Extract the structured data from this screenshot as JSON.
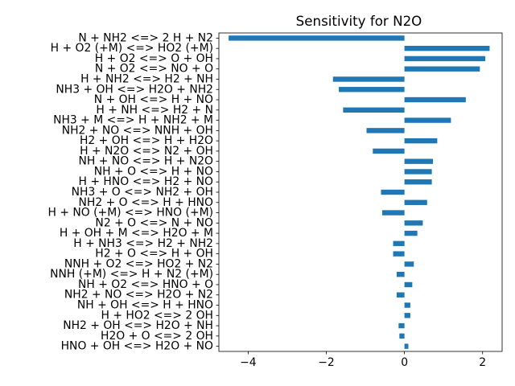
{
  "chart_data": {
    "type": "bar",
    "orientation": "horizontal",
    "title": "Sensitivity for N2O",
    "xlabel": "",
    "ylabel": "",
    "xlim": [
      -4.75,
      2.5
    ],
    "xticks": [
      -4,
      -2,
      0,
      2
    ],
    "xtick_labels": [
      "−4",
      "−2",
      "0",
      "2"
    ],
    "bar_color": "#1f77b4",
    "grid": false,
    "categories": [
      "N + NH2 <=> 2 H + N2",
      "H + O2 (+M) <=> HO2 (+M)",
      "H + O2 <=> O + OH",
      "N + O2 <=> NO + O",
      "H + NH2 <=> H2 + NH",
      "NH3 + OH <=> H2O + NH2",
      "N + OH <=> H + NO",
      "H + NH <=> H2 + N",
      "NH3 + M <=> H + NH2 + M",
      "NH2 + NO <=> NNH + OH",
      "H2 + OH <=> H + H2O",
      "H + N2O <=> N2 + OH",
      "NH + NO <=> H + N2O",
      "NH + O <=> H + NO",
      "H + HNO <=> H2 + NO",
      "NH3 + O <=> NH2 + OH",
      "NH2 + O <=> H + HNO",
      "H + NO (+M) <=> HNO (+M)",
      "N2 + O <=> N + NO",
      "H + OH + M <=> H2O + M",
      "H + NH3 <=> H2 + NH2",
      "H2 + O <=> H + OH",
      "NNH + O2 <=> HO2 + N2",
      "NNH (+M) <=> H + N2 (+M)",
      "NH + O2 <=> HNO + O",
      "NH2 + NO <=> H2O + N2",
      "NH + OH <=> H + HNO",
      "H + HO2 <=> 2 OH",
      "NH2 + OH <=> H2O + NH",
      "H2O + O <=> 2 OH",
      "HNO + OH <=> H2O + NO"
    ],
    "values": [
      -4.5,
      2.18,
      2.07,
      1.93,
      -1.83,
      -1.68,
      1.57,
      -1.57,
      1.19,
      -0.97,
      0.84,
      -0.81,
      0.73,
      0.7,
      0.7,
      -0.6,
      0.58,
      -0.57,
      0.47,
      0.33,
      -0.29,
      -0.29,
      0.24,
      -0.2,
      0.2,
      -0.2,
      0.15,
      0.15,
      -0.15,
      -0.13,
      0.1
    ]
  }
}
